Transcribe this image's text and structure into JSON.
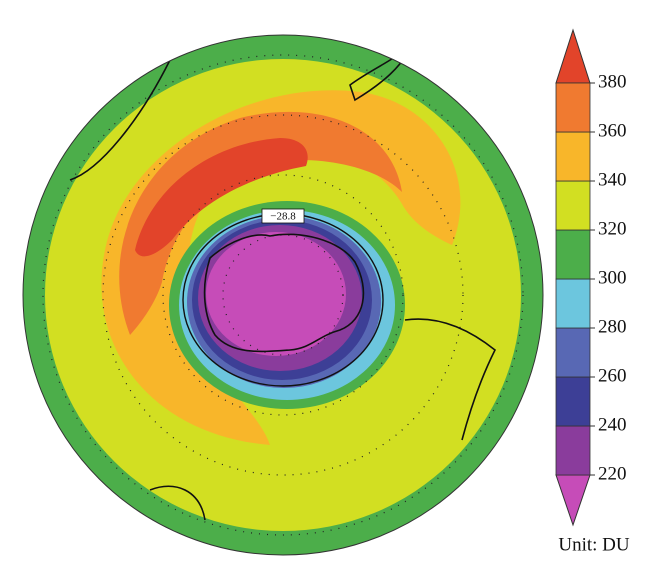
{
  "map": {
    "annotation": "−28.8"
  },
  "colorbar": {
    "ticks": [
      220,
      240,
      260,
      280,
      300,
      320,
      340,
      360,
      380
    ],
    "colors": [
      "#c64cb8",
      "#8a3c9c",
      "#3d3f96",
      "#5868b4",
      "#6cc6de",
      "#4cae4a",
      "#d2df22",
      "#f8b62a",
      "#f07a30",
      "#e2442a"
    ],
    "unit": "Unit: DU"
  }
}
